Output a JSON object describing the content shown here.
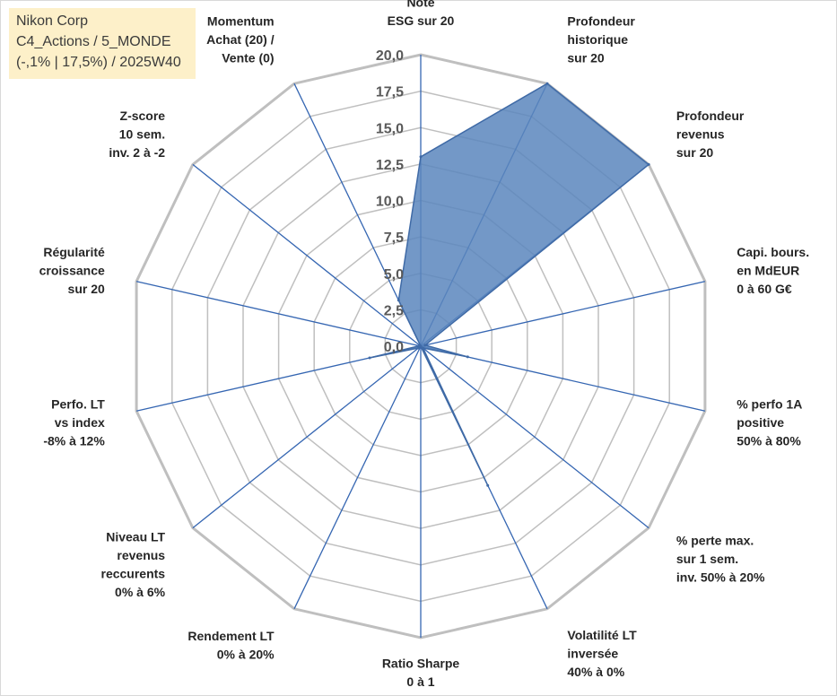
{
  "info_box": {
    "line1": "Nikon Corp",
    "line2": "C4_Actions / 5_MONDE",
    "line3": "(-,1% | 17,5%) / 2025W40"
  },
  "colors": {
    "grid": "#bfbfbf",
    "spoke": "#3566b2",
    "fill": "#5a86bd",
    "stroke": "#3f6aa6",
    "info_bg": "#fdf0c9"
  },
  "chart_data": {
    "type": "radar",
    "title": "",
    "r_min": 0,
    "r_max": 20,
    "r_step": 2.5,
    "tick_labels": [
      "0,0",
      "2,5",
      "5,0",
      "7,5",
      "10,0",
      "12,5",
      "15,0",
      "17,5",
      "20,0"
    ],
    "axes": [
      {
        "lines": [
          "Note",
          "ESG sur 20"
        ]
      },
      {
        "lines": [
          "Profondeur",
          "historique",
          "sur 20"
        ]
      },
      {
        "lines": [
          "Profondeur",
          "revenus",
          "sur 20"
        ]
      },
      {
        "lines": [
          "Capi. bours.",
          "en MdEUR",
          "0 à 60 G€"
        ]
      },
      {
        "lines": [
          "% perfo 1A",
          "positive",
          "50% à 80%"
        ]
      },
      {
        "lines": [
          "% perte max.",
          "sur 1 sem.",
          "inv. 50% à 20%"
        ]
      },
      {
        "lines": [
          "Volatilité LT",
          "inversée",
          "40% à 0%"
        ]
      },
      {
        "lines": [
          "Ratio Sharpe",
          "0 à 1"
        ]
      },
      {
        "lines": [
          "Rendement LT",
          "0% à 20%"
        ]
      },
      {
        "lines": [
          "Niveau LT",
          "revenus",
          "reccurents",
          "0% à 6%"
        ]
      },
      {
        "lines": [
          "Perfo. LT",
          "vs index",
          "-8% à 12%"
        ]
      },
      {
        "lines": [
          "Régularité",
          "croissance",
          "sur 20"
        ]
      },
      {
        "lines": [
          "Z-score",
          "10 sem.",
          "inv. 2 à -2"
        ]
      },
      {
        "lines": [
          "Momentum",
          "Achat (20) /",
          "Vente (0)"
        ]
      }
    ],
    "series": [
      {
        "values": [
          13,
          20,
          20,
          0.3,
          3.3,
          0.2,
          10.6,
          0,
          0,
          0.2,
          3.6,
          0.1,
          0,
          3.5
        ]
      }
    ]
  }
}
